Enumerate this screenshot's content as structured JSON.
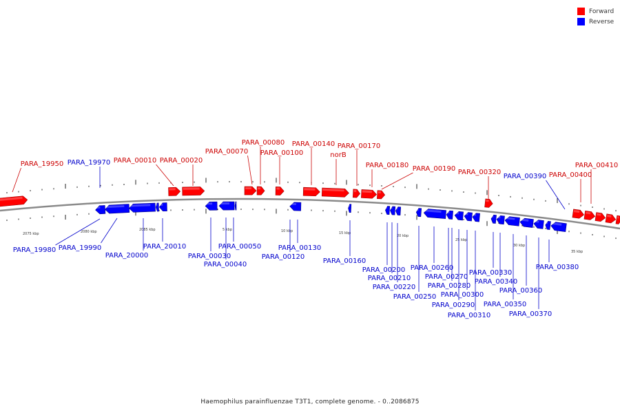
{
  "title": "Haemophilus parainfluenzae T3T1, complete genome. - 0..2086875",
  "legend": [
    {
      "label": "Forward",
      "color": "#ff0000"
    },
    {
      "label": "Reverse",
      "color": "#0000ff"
    }
  ],
  "colors": {
    "forward": "#ff0000",
    "forward_label": "#cc0000",
    "reverse": "#0000ff",
    "reverse_label": "#0000cc",
    "backbone": "#8a8a8a"
  },
  "scale_labels": [
    "2075 kbp",
    "2080 kbp",
    "2085 kbp",
    "5 kbp",
    "10 kbp",
    "15 kbp",
    "20 kbp",
    "25 kbp",
    "30 kbp",
    "35 kbp"
  ],
  "genes_forward": [
    "PARA_19950",
    "PARA_00010",
    "PARA_00020",
    "PARA_00070",
    "PARA_00080",
    "PARA_00100",
    "PARA_00140",
    "norB",
    "PARA_00170",
    "PARA_00180",
    "PARA_00190",
    "PARA_00320",
    "PARA_00400",
    "PARA_00410"
  ],
  "genes_reverse": [
    "PARA_19970",
    "PARA_19980",
    "PARA_19990",
    "PARA_20000",
    "PARA_20010",
    "PARA_00030",
    "PARA_00040",
    "PARA_00050",
    "PARA_00120",
    "PARA_00130",
    "PARA_00160",
    "PARA_00200",
    "PARA_00210",
    "PARA_00220",
    "PARA_00250",
    "PARA_00260",
    "PARA_00270",
    "PARA_00280",
    "PARA_00290",
    "PARA_00300",
    "PARA_00310",
    "PARA_00330",
    "PARA_00340",
    "PARA_00350",
    "PARA_00360",
    "PARA_00370",
    "PARA_00380",
    "PARA_00390"
  ]
}
